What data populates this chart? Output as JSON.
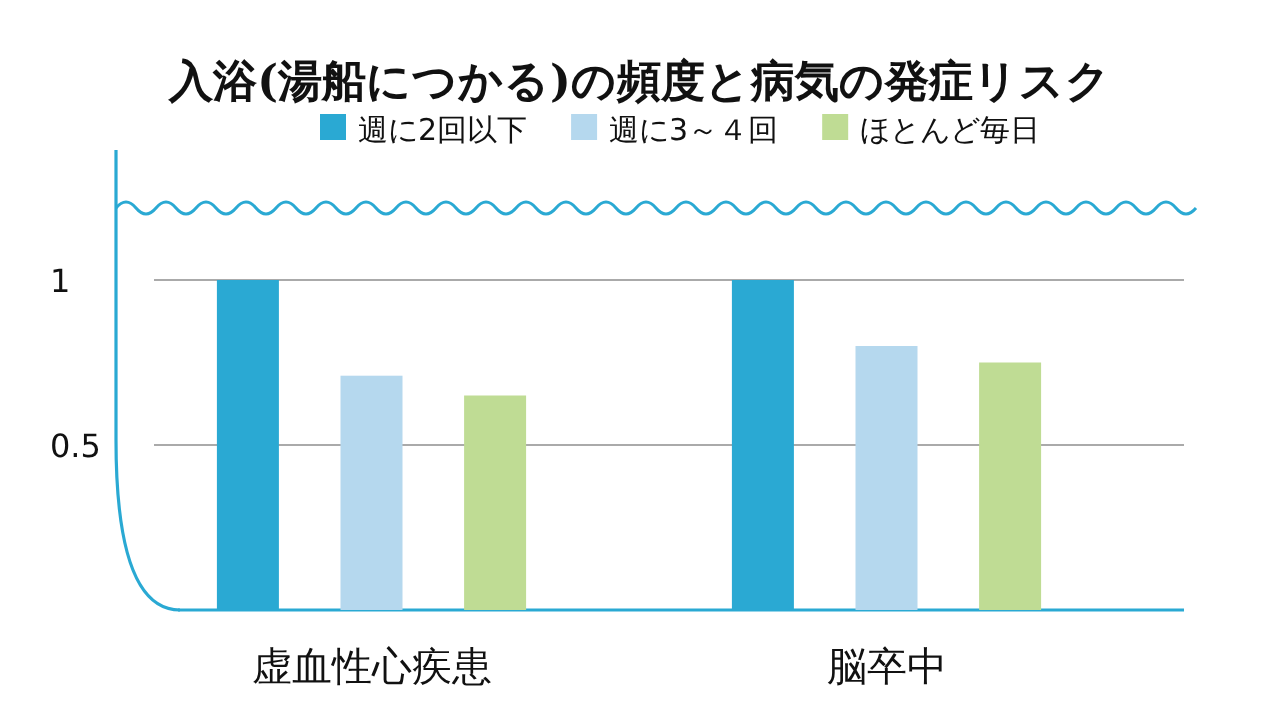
{
  "chart_data": {
    "type": "bar",
    "title": "入浴(湯船につかる)の頻度と病気の発症リスク",
    "categories": [
      "虚血性心疾患",
      "脳卒中"
    ],
    "series": [
      {
        "name": "週に2回以下",
        "color": "#2aa9d3",
        "values": [
          1,
          1
        ]
      },
      {
        "name": "週に3～４回",
        "color": "#b5d8ee",
        "values": [
          0.71,
          0.8
        ]
      },
      {
        "name": "ほとんど毎日",
        "color": "#bfdc94",
        "values": [
          0.65,
          0.75
        ]
      }
    ],
    "ylim": [
      0,
      1
    ],
    "yticks": [
      0.5,
      1
    ],
    "grid": "y",
    "legend": "top"
  }
}
